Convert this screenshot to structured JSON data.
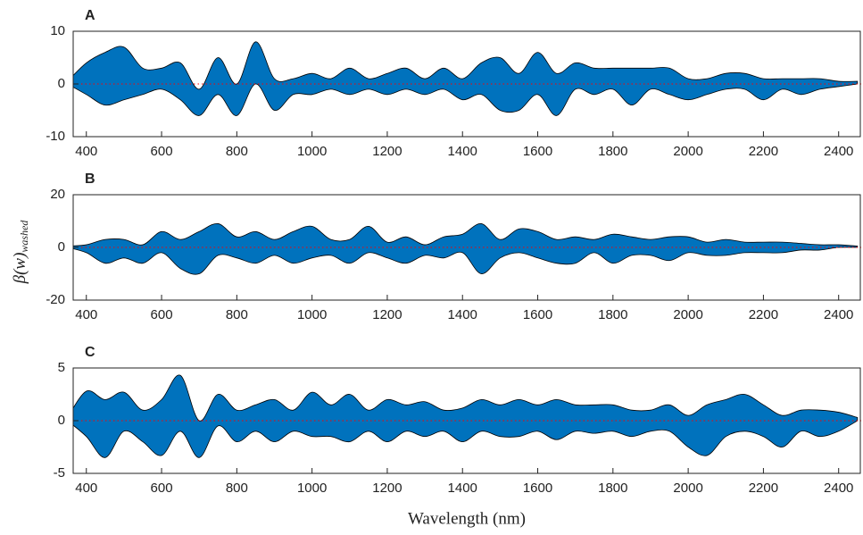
{
  "ylabel": {
    "main": "β(w)",
    "sub": "washed"
  },
  "xlabel": "Wavelength (nm)",
  "chart_data": [
    {
      "type": "band",
      "title": "A",
      "color": "#0072bd",
      "edge_color": "#000000",
      "zero_line_color": "#ff0000",
      "x": [
        350,
        400,
        450,
        500,
        550,
        600,
        650,
        700,
        750,
        800,
        850,
        900,
        950,
        1000,
        1050,
        1100,
        1150,
        1200,
        1250,
        1300,
        1350,
        1400,
        1450,
        1500,
        1550,
        1600,
        1650,
        1700,
        1750,
        1800,
        1850,
        1900,
        1950,
        2000,
        2050,
        2100,
        2150,
        2200,
        2250,
        2300,
        2350,
        2400,
        2450
      ],
      "upper": [
        0.5,
        4,
        6,
        7,
        3,
        3,
        4,
        -1,
        5,
        0,
        8,
        1,
        1,
        2,
        1,
        3,
        1,
        2,
        3,
        1,
        3,
        1,
        4,
        5,
        2,
        6,
        2,
        4,
        3,
        3,
        3,
        3,
        3,
        1,
        1,
        2,
        2,
        1,
        1,
        1,
        1,
        0.5,
        0.5
      ],
      "lower": [
        0,
        -2,
        -4,
        -3,
        -2,
        -1,
        -3,
        -6,
        -2,
        -6,
        0,
        -5,
        -2,
        -2,
        -1,
        -2,
        -1,
        -2,
        -1,
        -2,
        -1,
        -3,
        -2,
        -5,
        -5,
        -2,
        -6,
        -1,
        -2,
        -1,
        -4,
        -1,
        -2,
        -3,
        -2,
        -1,
        -1,
        -3,
        -1,
        -2,
        -1,
        -0.5,
        0
      ],
      "xlim": [
        365,
        2460
      ],
      "xticks": [
        400,
        600,
        800,
        1000,
        1200,
        1400,
        1600,
        1800,
        2000,
        2200,
        2400
      ],
      "ylim": [
        -10,
        10
      ],
      "yticks": [
        -10,
        0,
        10
      ]
    },
    {
      "type": "band",
      "title": "B",
      "color": "#0072bd",
      "edge_color": "#000000",
      "zero_line_color": "#ff0000",
      "x": [
        350,
        400,
        450,
        500,
        550,
        600,
        650,
        700,
        750,
        800,
        850,
        900,
        950,
        1000,
        1050,
        1100,
        1150,
        1200,
        1250,
        1300,
        1350,
        1400,
        1450,
        1500,
        1550,
        1600,
        1650,
        1700,
        1750,
        1800,
        1850,
        1900,
        1950,
        2000,
        2050,
        2100,
        2150,
        2200,
        2250,
        2300,
        2350,
        2400,
        2450
      ],
      "upper": [
        0.5,
        1,
        3,
        3,
        1,
        6,
        3,
        6,
        9,
        4,
        6,
        3,
        6,
        8,
        3,
        3,
        8,
        2,
        4,
        1,
        4,
        5,
        9,
        3,
        7,
        6,
        3,
        4,
        3,
        5,
        4,
        3,
        4,
        4,
        2,
        3,
        2,
        2,
        2,
        1.5,
        1,
        1,
        0.5
      ],
      "lower": [
        0,
        -2,
        -6,
        -4,
        -6,
        -2,
        -8,
        -10,
        -3,
        -4,
        -6,
        -3,
        -6,
        -4,
        -3,
        -6,
        -2,
        -4,
        -6,
        -3,
        -4,
        -2,
        -10,
        -4,
        -2,
        -4,
        -6,
        -6,
        -2,
        -6,
        -3,
        -3,
        -5,
        -2,
        -3,
        -3,
        -2,
        -2,
        -2,
        -1,
        -1,
        0,
        0
      ],
      "xlim": [
        365,
        2460
      ],
      "xticks": [
        400,
        600,
        800,
        1000,
        1200,
        1400,
        1600,
        1800,
        2000,
        2200,
        2400
      ],
      "ylim": [
        -20,
        20
      ],
      "yticks": [
        -20,
        0,
        20
      ]
    },
    {
      "type": "band",
      "title": "C",
      "color": "#0072bd",
      "edge_color": "#000000",
      "zero_line_color": "#ff0000",
      "x": [
        350,
        400,
        450,
        500,
        550,
        600,
        650,
        700,
        750,
        800,
        850,
        900,
        950,
        1000,
        1050,
        1100,
        1150,
        1200,
        1250,
        1300,
        1350,
        1400,
        1450,
        1500,
        1550,
        1600,
        1650,
        1700,
        1750,
        1800,
        1850,
        1900,
        1950,
        2000,
        2050,
        2100,
        2150,
        2200,
        2250,
        2300,
        2350,
        2400,
        2450
      ],
      "upper": [
        0.3,
        2.8,
        2,
        2.7,
        1,
        2,
        4.3,
        0,
        2.5,
        1,
        1.5,
        2,
        1,
        2.7,
        1.5,
        2.5,
        1,
        2,
        1.5,
        1.8,
        1,
        1.2,
        2,
        1.5,
        2,
        1.5,
        2,
        1.5,
        1.5,
        1.5,
        1,
        1,
        1.5,
        0.5,
        1.5,
        2,
        2.5,
        1.5,
        0.5,
        1,
        1,
        0.8,
        0.3
      ],
      "lower": [
        0,
        -1.5,
        -3.5,
        -1,
        -2,
        -3.3,
        -1,
        -3.5,
        -0.5,
        -2,
        -1,
        -2,
        -1,
        -1.5,
        -1.5,
        -2,
        -1,
        -2,
        -1,
        -1.5,
        -1,
        -2,
        -1,
        -1.5,
        -1.5,
        -1,
        -1.8,
        -1,
        -1.2,
        -1,
        -1.5,
        -1,
        -1,
        -2.5,
        -3.3,
        -1.5,
        -1,
        -1.5,
        -2.5,
        -1,
        -1.5,
        -1,
        0
      ],
      "xlim": [
        365,
        2460
      ],
      "xticks": [
        400,
        600,
        800,
        1000,
        1200,
        1400,
        1600,
        1800,
        2000,
        2200,
        2400
      ],
      "ylim": [
        -5,
        5
      ],
      "yticks": [
        -5,
        0,
        5
      ]
    }
  ]
}
